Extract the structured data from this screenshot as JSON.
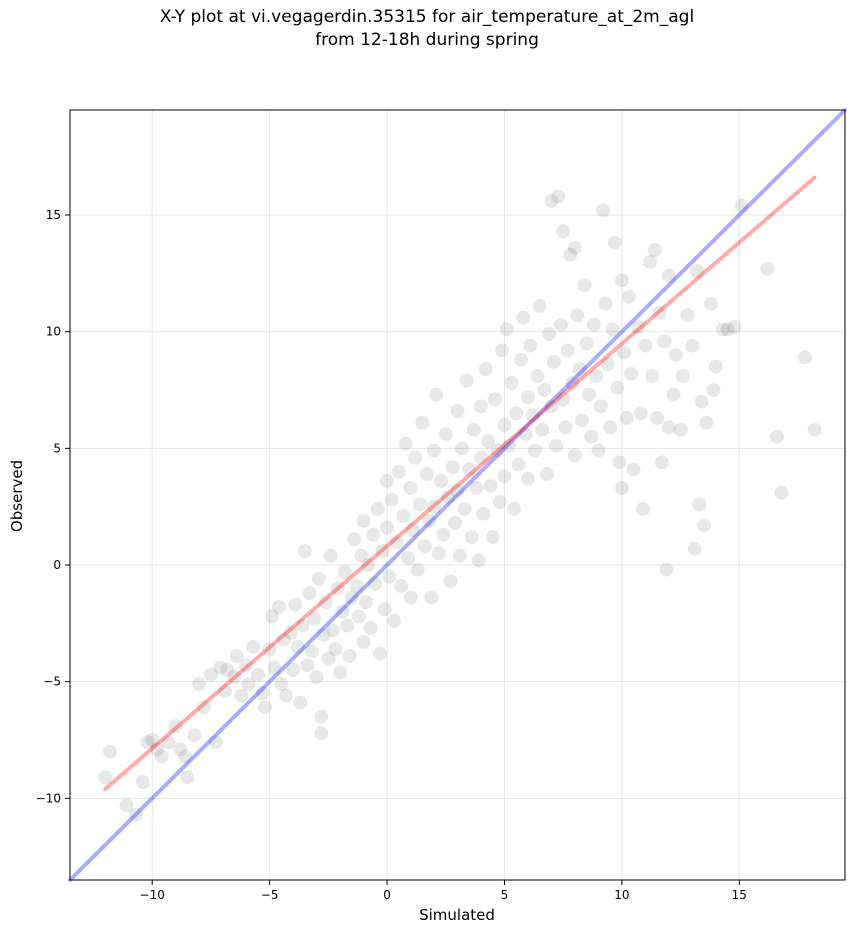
{
  "chart_data": {
    "type": "scatter",
    "title": "X-Y plot at vi.vegagerdin.35315 for air_temperature_at_2m_agl\nfrom 12-18h during spring",
    "xlabel": "Simulated",
    "ylabel": "Observed",
    "xlim": [
      -13.5,
      19.5
    ],
    "ylim": [
      -13.5,
      19.5
    ],
    "xticks": [
      -10,
      -5,
      0,
      5,
      10,
      15
    ],
    "yticks": [
      -10,
      -5,
      0,
      5,
      10,
      15
    ],
    "grid": true,
    "colors": {
      "points": "#000000",
      "identity_line": "#0000ff",
      "fit_line": "#ff0000",
      "grid": "#e6e6e6"
    },
    "reference_lines": [
      {
        "kind": "identity",
        "color": "#0000ff",
        "x": [
          -13.5,
          19.5
        ],
        "y": [
          -13.5,
          19.5
        ]
      },
      {
        "kind": "fit",
        "color": "#ff0000",
        "x": [
          -12,
          18.2
        ],
        "y": [
          -9.6,
          16.6
        ]
      }
    ],
    "points": [
      [
        -12,
        -9.1
      ],
      [
        -11.8,
        -8
      ],
      [
        -11.1,
        -10.3
      ],
      [
        -10.7,
        -10.7
      ],
      [
        -10.4,
        -9.3
      ],
      [
        -10.2,
        -7.6
      ],
      [
        -10,
        -7.5
      ],
      [
        -9.8,
        -7.9
      ],
      [
        -9.6,
        -8.2
      ],
      [
        -9.3,
        -7.6
      ],
      [
        -9,
        -6.9
      ],
      [
        -8.8,
        -7.9
      ],
      [
        -8.6,
        -8.2
      ],
      [
        -8.5,
        -9.1
      ],
      [
        -8.2,
        -7.3
      ],
      [
        -8,
        -5.1
      ],
      [
        -7.8,
        -6.1
      ],
      [
        -7.5,
        -4.7
      ],
      [
        -7.3,
        -7.6
      ],
      [
        -7.1,
        -4.4
      ],
      [
        -6.9,
        -5.4
      ],
      [
        -6.8,
        -4.5
      ],
      [
        -6.5,
        -4.8
      ],
      [
        -6.4,
        -3.9
      ],
      [
        -6.2,
        -5.6
      ],
      [
        -6,
        -4.3
      ],
      [
        -5.9,
        -5.1
      ],
      [
        -5.7,
        -3.5
      ],
      [
        -5.5,
        -4.7
      ],
      [
        -5.3,
        -5.5
      ],
      [
        -5.2,
        -6.1
      ],
      [
        -5,
        -3.6
      ],
      [
        -4.9,
        -2.2
      ],
      [
        -4.8,
        -4.4
      ],
      [
        -4.6,
        -1.8
      ],
      [
        -4.5,
        -5.1
      ],
      [
        -4.4,
        -3.2
      ],
      [
        -4.3,
        -5.6
      ],
      [
        -4.1,
        -2.9
      ],
      [
        -4,
        -4.5
      ],
      [
        -3.9,
        -1.7
      ],
      [
        -3.8,
        -3.5
      ],
      [
        -3.7,
        -5.9
      ],
      [
        -3.6,
        -2.6
      ],
      [
        -3.5,
        0.6
      ],
      [
        -3.4,
        -4.3
      ],
      [
        -3.3,
        -1.2
      ],
      [
        -3.2,
        -3.7
      ],
      [
        -3.1,
        -2.3
      ],
      [
        -3,
        -4.8
      ],
      [
        -2.9,
        -0.6
      ],
      [
        -2.8,
        -6.5
      ],
      [
        -2.8,
        -7.2
      ],
      [
        -2.7,
        -3
      ],
      [
        -2.6,
        -1.6
      ],
      [
        -2.5,
        -4
      ],
      [
        -2.4,
        0.4
      ],
      [
        -2.3,
        -2.8
      ],
      [
        -2.2,
        -3.6
      ],
      [
        -2.1,
        -1
      ],
      [
        -2,
        -4.6
      ],
      [
        -1.9,
        -2
      ],
      [
        -1.8,
        -0.3
      ],
      [
        -1.7,
        -2.6
      ],
      [
        -1.6,
        -3.9
      ],
      [
        -1.5,
        -1.4
      ],
      [
        -1.4,
        1.1
      ],
      [
        -1.3,
        -0.9
      ],
      [
        -1.2,
        -2.2
      ],
      [
        -1.1,
        0.4
      ],
      [
        -1,
        -3.3
      ],
      [
        -1,
        1.9
      ],
      [
        -0.9,
        -1.6
      ],
      [
        -0.8,
        0
      ],
      [
        -0.7,
        -2.7
      ],
      [
        -0.6,
        1.3
      ],
      [
        -0.5,
        -0.8
      ],
      [
        -0.4,
        2.4
      ],
      [
        -0.3,
        -3.8
      ],
      [
        -0.2,
        0.6
      ],
      [
        -0.1,
        -1.9
      ],
      [
        0,
        1.6
      ],
      [
        0,
        3.6
      ],
      [
        0.1,
        -0.5
      ],
      [
        0.2,
        2.8
      ],
      [
        0.3,
        -2.4
      ],
      [
        0.4,
        1
      ],
      [
        0.5,
        4
      ],
      [
        0.6,
        -0.9
      ],
      [
        0.7,
        2.1
      ],
      [
        0.8,
        5.2
      ],
      [
        0.9,
        0.3
      ],
      [
        1,
        -1.4
      ],
      [
        1,
        3.3
      ],
      [
        1.1,
        1.5
      ],
      [
        1.2,
        4.6
      ],
      [
        1.3,
        -0.2
      ],
      [
        1.4,
        2.6
      ],
      [
        1.5,
        6.1
      ],
      [
        1.6,
        0.8
      ],
      [
        1.7,
        3.9
      ],
      [
        1.8,
        1.9
      ],
      [
        1.9,
        -1.4
      ],
      [
        2,
        4.9
      ],
      [
        2,
        2.5
      ],
      [
        2.1,
        7.3
      ],
      [
        2.2,
        0.5
      ],
      [
        2.3,
        3.6
      ],
      [
        2.4,
        1.3
      ],
      [
        2.5,
        5.6
      ],
      [
        2.6,
        2.9
      ],
      [
        2.7,
        -0.7
      ],
      [
        2.8,
        4.2
      ],
      [
        2.9,
        1.8
      ],
      [
        3,
        6.6
      ],
      [
        3,
        3.2
      ],
      [
        3.1,
        0.4
      ],
      [
        3.2,
        5
      ],
      [
        3.3,
        2.4
      ],
      [
        3.4,
        7.9
      ],
      [
        3.5,
        4.1
      ],
      [
        3.6,
        1.2
      ],
      [
        3.7,
        5.8
      ],
      [
        3.8,
        3.3
      ],
      [
        3.9,
        0.2
      ],
      [
        4,
        6.8
      ],
      [
        4,
        4.6
      ],
      [
        4.1,
        2.2
      ],
      [
        4.2,
        8.4
      ],
      [
        4.3,
        5.3
      ],
      [
        4.4,
        3.4
      ],
      [
        4.5,
        1.2
      ],
      [
        4.6,
        7.1
      ],
      [
        4.7,
        4.9
      ],
      [
        4.8,
        2.7
      ],
      [
        4.9,
        9.2
      ],
      [
        5,
        6
      ],
      [
        5,
        3.8
      ],
      [
        5.1,
        10.1
      ],
      [
        5.2,
        5.1
      ],
      [
        5.3,
        7.8
      ],
      [
        5.4,
        2.4
      ],
      [
        5.5,
        6.5
      ],
      [
        5.6,
        4.3
      ],
      [
        5.7,
        8.8
      ],
      [
        5.8,
        10.6
      ],
      [
        5.9,
        5.6
      ],
      [
        6,
        7.2
      ],
      [
        6,
        3.7
      ],
      [
        6.1,
        9.4
      ],
      [
        6.2,
        6.4
      ],
      [
        6.3,
        4.9
      ],
      [
        6.4,
        8.1
      ],
      [
        6.5,
        11.1
      ],
      [
        6.6,
        5.8
      ],
      [
        6.7,
        7.5
      ],
      [
        6.8,
        3.9
      ],
      [
        6.9,
        9.9
      ],
      [
        7,
        6.8
      ],
      [
        7,
        15.6
      ],
      [
        7.1,
        8.7
      ],
      [
        7.2,
        5.1
      ],
      [
        7.3,
        15.8
      ],
      [
        7.4,
        10.3
      ],
      [
        7.5,
        7.1
      ],
      [
        7.5,
        14.3
      ],
      [
        7.6,
        5.9
      ],
      [
        7.7,
        9.2
      ],
      [
        7.8,
        13.3
      ],
      [
        7.9,
        7.8
      ],
      [
        8,
        4.7
      ],
      [
        8,
        13.6
      ],
      [
        8.1,
        10.7
      ],
      [
        8.2,
        8.4
      ],
      [
        8.3,
        6.2
      ],
      [
        8.4,
        12
      ],
      [
        8.5,
        9.5
      ],
      [
        8.6,
        7.3
      ],
      [
        8.7,
        5.5
      ],
      [
        8.8,
        10.3
      ],
      [
        8.9,
        8.1
      ],
      [
        9,
        4.9
      ],
      [
        9.1,
        6.8
      ],
      [
        9.2,
        15.2
      ],
      [
        9.3,
        11.2
      ],
      [
        9.4,
        8.6
      ],
      [
        9.5,
        5.9
      ],
      [
        9.6,
        10.1
      ],
      [
        9.7,
        13.8
      ],
      [
        9.8,
        7.6
      ],
      [
        9.9,
        4.4
      ],
      [
        10,
        12.2
      ],
      [
        10,
        3.3
      ],
      [
        10.1,
        9.1
      ],
      [
        10.2,
        6.3
      ],
      [
        10.3,
        11.5
      ],
      [
        10.4,
        8.2
      ],
      [
        10.5,
        4.1
      ],
      [
        10.7,
        10.2
      ],
      [
        10.8,
        6.5
      ],
      [
        10.9,
        2.4
      ],
      [
        11,
        9.4
      ],
      [
        11.2,
        13
      ],
      [
        11.3,
        8.1
      ],
      [
        11.4,
        13.5
      ],
      [
        11.5,
        6.3
      ],
      [
        11.6,
        10.8
      ],
      [
        11.7,
        4.4
      ],
      [
        11.8,
        9.6
      ],
      [
        11.9,
        -0.2
      ],
      [
        12,
        12.4
      ],
      [
        12,
        5.9
      ],
      [
        12.2,
        7.3
      ],
      [
        12.3,
        9
      ],
      [
        12.5,
        5.8
      ],
      [
        12.6,
        8.1
      ],
      [
        12.8,
        10.7
      ],
      [
        13,
        9.4
      ],
      [
        13.1,
        0.7
      ],
      [
        13.2,
        12.6
      ],
      [
        13.3,
        2.6
      ],
      [
        13.4,
        7
      ],
      [
        13.5,
        1.7
      ],
      [
        13.6,
        6.1
      ],
      [
        13.8,
        11.2
      ],
      [
        13.9,
        7.5
      ],
      [
        14,
        8.5
      ],
      [
        14.3,
        10.1
      ],
      [
        14.5,
        10.1
      ],
      [
        14.8,
        10.2
      ],
      [
        15.1,
        15.4
      ],
      [
        16.2,
        12.7
      ],
      [
        16.6,
        5.5
      ],
      [
        16.8,
        3.1
      ],
      [
        17.8,
        8.9
      ],
      [
        18.2,
        5.8
      ]
    ]
  }
}
